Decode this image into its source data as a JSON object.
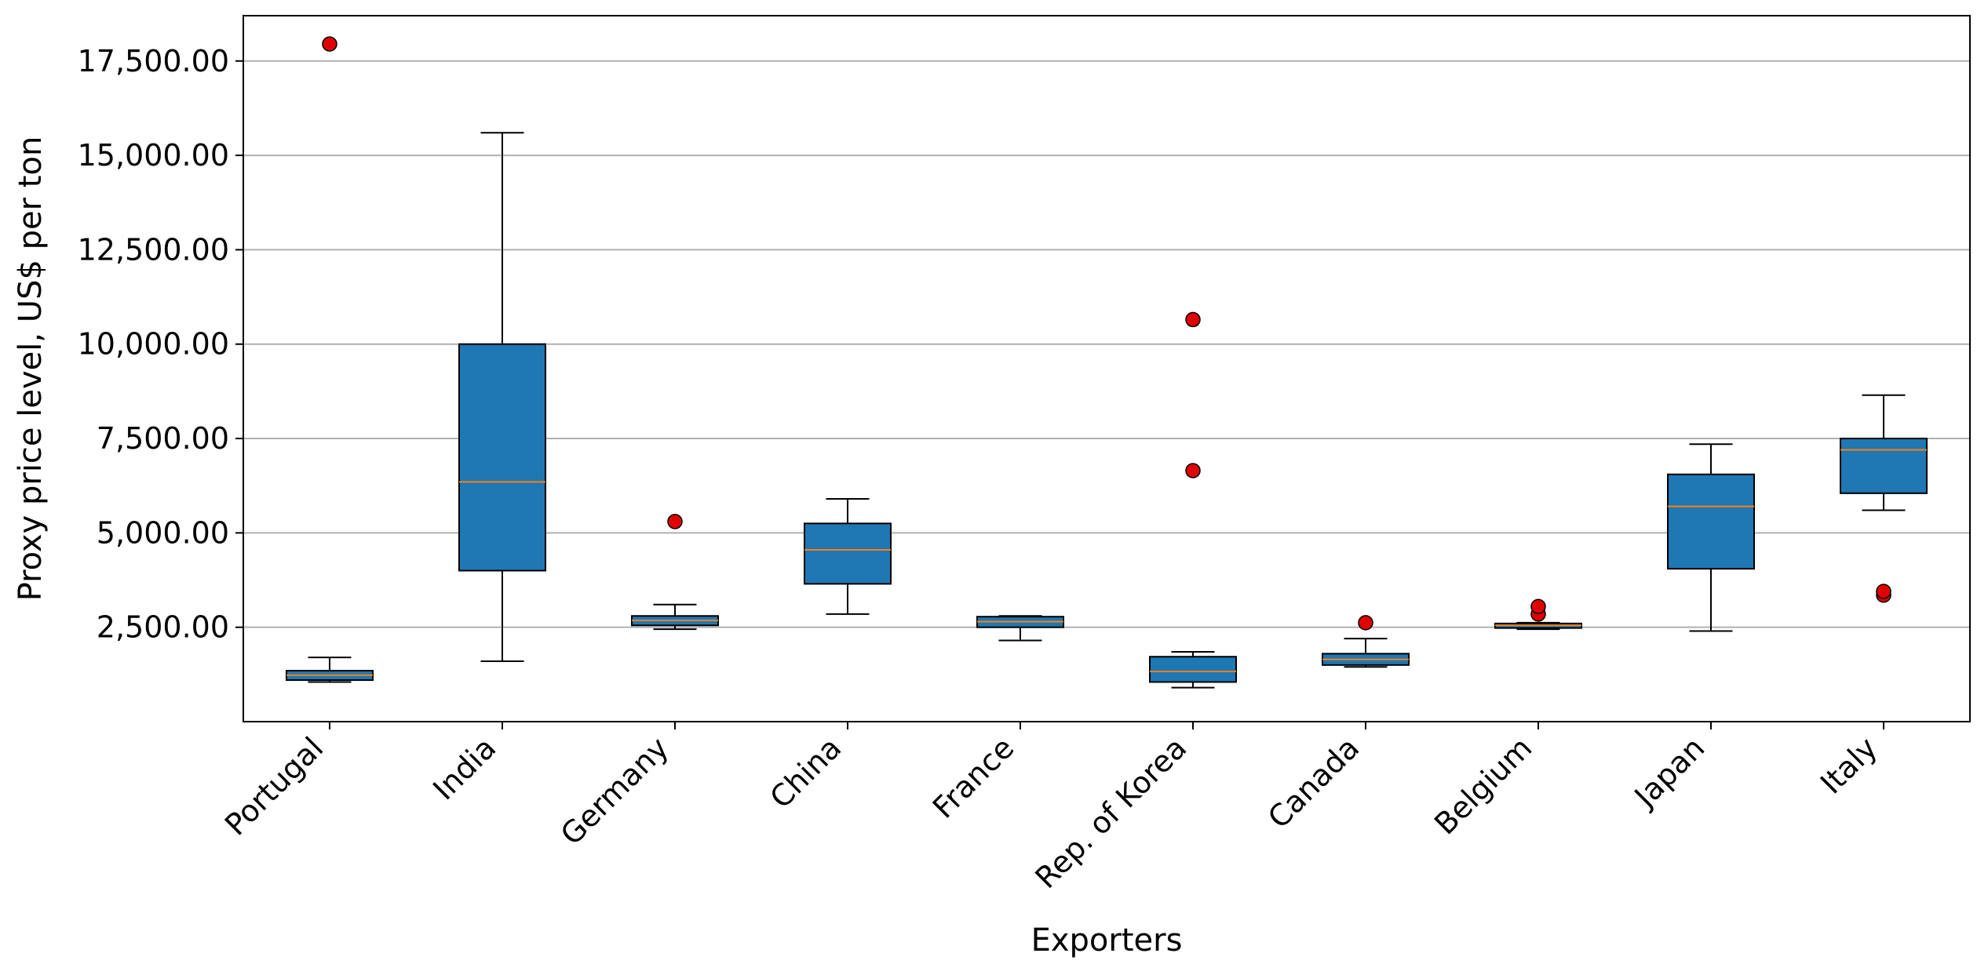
{
  "chart_data": {
    "type": "box",
    "title": "",
    "xlabel": "Exporters",
    "ylabel": "Proxy price level, US$ per ton",
    "ylim": [
      0,
      18700
    ],
    "yticks": [
      2500,
      5000,
      7500,
      10000,
      12500,
      15000,
      17500
    ],
    "ytick_labels": [
      "2,500.00",
      "5,000.00",
      "7,500.00",
      "10,000.00",
      "12,500.00",
      "15,000.00",
      "17,500.00"
    ],
    "grid": "horizontal",
    "colors": {
      "box_fill": "#1f77b4",
      "median": "#ff7f0e",
      "outlier_fill": "#e00000",
      "grid": "#b0b0b0"
    },
    "categories": [
      "Portugal",
      "India",
      "Germany",
      "China",
      "France",
      "Rep. of Korea",
      "Canada",
      "Belgium",
      "Japan",
      "Italy"
    ],
    "boxes": [
      {
        "category": "Portugal",
        "whisker_low": 1050,
        "q1": 1100,
        "median": 1230,
        "q3": 1350,
        "whisker_high": 1700,
        "outliers": [
          17950
        ]
      },
      {
        "category": "India",
        "whisker_low": 1600,
        "q1": 4000,
        "median": 6350,
        "q3": 10000,
        "whisker_high": 15600,
        "outliers": []
      },
      {
        "category": "Germany",
        "whisker_low": 2450,
        "q1": 2550,
        "median": 2680,
        "q3": 2800,
        "whisker_high": 3100,
        "outliers": [
          5300
        ]
      },
      {
        "category": "China",
        "whisker_low": 2850,
        "q1": 3650,
        "median": 4550,
        "q3": 5250,
        "whisker_high": 5900,
        "outliers": []
      },
      {
        "category": "France",
        "whisker_low": 2150,
        "q1": 2500,
        "median": 2650,
        "q3": 2780,
        "whisker_high": 2800,
        "outliers": []
      },
      {
        "category": "Rep. of Korea",
        "whisker_low": 900,
        "q1": 1050,
        "median": 1330,
        "q3": 1720,
        "whisker_high": 1850,
        "outliers": [
          6650,
          10650
        ]
      },
      {
        "category": "Canada",
        "whisker_low": 1450,
        "q1": 1500,
        "median": 1650,
        "q3": 1800,
        "whisker_high": 2200,
        "outliers": [
          2620
        ]
      },
      {
        "category": "Belgium",
        "whisker_low": 2450,
        "q1": 2480,
        "median": 2550,
        "q3": 2600,
        "whisker_high": 2620,
        "outliers": [
          2850,
          3050
        ]
      },
      {
        "category": "Japan",
        "whisker_low": 2400,
        "q1": 4050,
        "median": 5700,
        "q3": 6550,
        "whisker_high": 7350,
        "outliers": []
      },
      {
        "category": "Italy",
        "whisker_low": 5600,
        "q1": 6050,
        "median": 7200,
        "q3": 7500,
        "whisker_high": 8650,
        "outliers": [
          3350,
          3450
        ]
      }
    ]
  }
}
